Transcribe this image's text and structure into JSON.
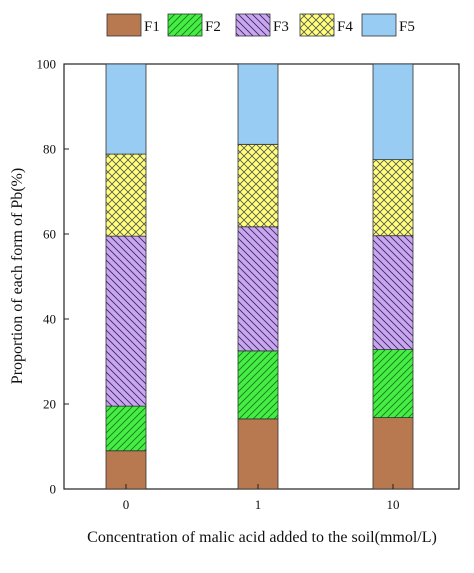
{
  "chart_data": {
    "type": "bar",
    "stacked": true,
    "title": "",
    "xlabel": "Concentration of malic acid added to the soil(mmol/L)",
    "ylabel": "Proportion of each form of Pb(%)",
    "ylim": [
      0,
      100
    ],
    "yticks": [
      0,
      20,
      40,
      60,
      80,
      100
    ],
    "categories": [
      "0",
      "1",
      "10"
    ],
    "legend": {
      "placement": "top",
      "entries": [
        "F1",
        "F2",
        "F3",
        "F4",
        "F5"
      ]
    },
    "grid": false,
    "series": [
      {
        "name": "F1",
        "values": [
          9.0,
          16.5,
          16.8
        ],
        "color": "#b87850",
        "pattern": "solid"
      },
      {
        "name": "F2",
        "values": [
          10.5,
          16.0,
          16.0
        ],
        "color": "#44ee44",
        "pattern": "diag-right"
      },
      {
        "name": "F3",
        "values": [
          40.0,
          29.2,
          26.8
        ],
        "color": "#c9a6ee",
        "pattern": "diag-left"
      },
      {
        "name": "F4",
        "values": [
          19.3,
          19.4,
          17.9
        ],
        "color": "#ffff7a",
        "pattern": "crosshatch"
      },
      {
        "name": "F5",
        "values": [
          21.2,
          18.9,
          22.5
        ],
        "color": "#99ccf2",
        "pattern": "solid"
      }
    ]
  }
}
